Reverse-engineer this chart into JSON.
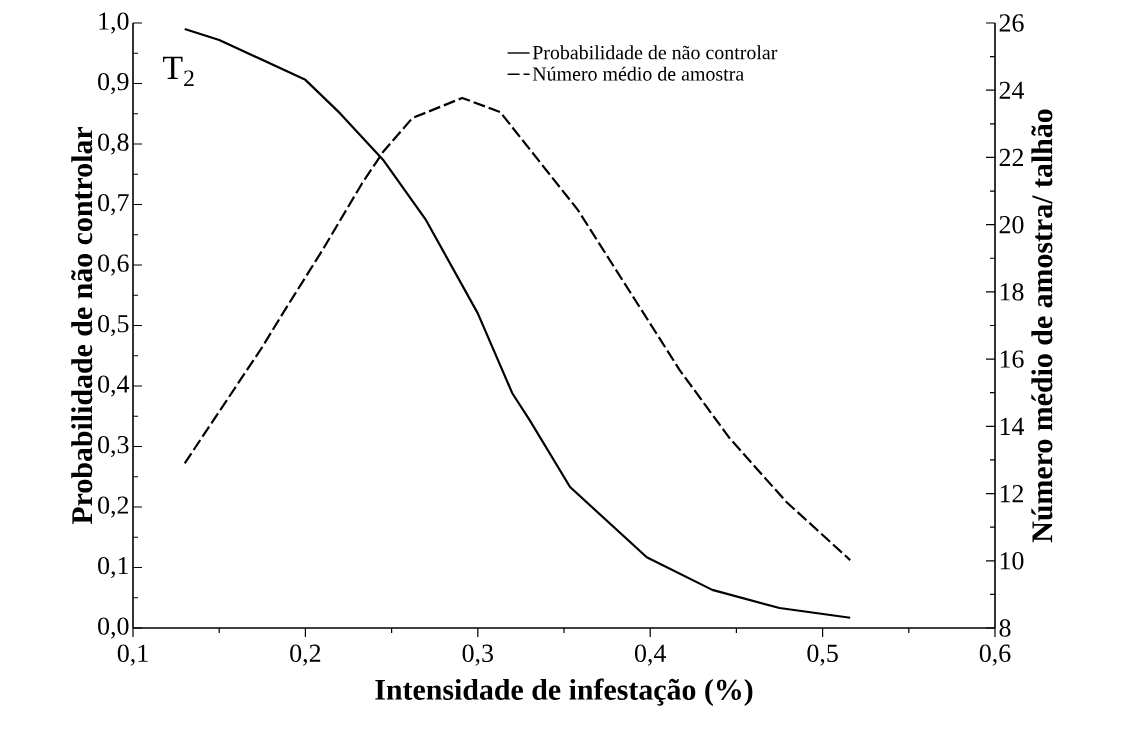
{
  "chart_data": {
    "type": "line",
    "xlabel": "Intensidade de infestação (%)",
    "ylabel": "Probabilidade de não controlar",
    "y2label": "Número médio de amostra/ talhão",
    "annotations": [
      "T$_{2}$"
    ],
    "xlim": [
      0.1,
      0.6
    ],
    "xticks": [
      {
        "value": 0.1,
        "label": "0,1"
      },
      {
        "value": 0.2,
        "label": "0,2"
      },
      {
        "value": 0.3,
        "label": "0,3"
      },
      {
        "value": 0.4,
        "label": "0,4"
      },
      {
        "value": 0.5,
        "label": "0,5"
      },
      {
        "value": 0.6,
        "label": "0,6"
      }
    ],
    "ylim": [
      0,
      1
    ],
    "yticks": [
      {
        "value": 0,
        "label": "0,0"
      },
      {
        "value": 0.1,
        "label": "0,1"
      },
      {
        "value": 0.2,
        "label": "0,2"
      },
      {
        "value": 0.3,
        "label": "0,3"
      },
      {
        "value": 0.4,
        "label": "0,4"
      },
      {
        "value": 0.5,
        "label": "0,5"
      },
      {
        "value": 0.6,
        "label": "0,6"
      },
      {
        "value": 0.7,
        "label": "0,7"
      },
      {
        "value": 0.8,
        "label": "0,8"
      },
      {
        "value": 0.9,
        "label": "0,9"
      },
      {
        "value": 1,
        "label": "1,0"
      }
    ],
    "y2lim": [
      8,
      26
    ],
    "y2ticks": [
      8,
      10,
      12,
      14,
      16,
      18,
      20,
      22,
      24,
      26
    ],
    "legend": "top right",
    "grid": false,
    "series": [
      {
        "name": "Probabilidade de não controlar",
        "color": "#000000",
        "line_style": "solid",
        "x": [
          0.13,
          0.15,
          0.2,
          0.22,
          0.245,
          0.27,
          0.3,
          0.32,
          0.33,
          0.3535,
          0.398,
          0.436,
          0.475,
          0.516
        ],
        "values": [
          0.99,
          0.972,
          0.906,
          0.851,
          0.774,
          0.674,
          0.52,
          0.388,
          0.344,
          0.233,
          0.117,
          0.063,
          0.033,
          0.017
        ]
      },
      {
        "name": "Número médio de amostra",
        "color": "#000000",
        "line_style": "dashed",
        "axis": "y2",
        "x": [
          0.13,
          0.175,
          0.187,
          0.21,
          0.233,
          0.245,
          0.262,
          0.291,
          0.313,
          0.358,
          0.406,
          0.417,
          0.446,
          0.479,
          0.516
        ],
        "values": [
          12.9,
          16.36,
          17.37,
          19.25,
          21.24,
          22.16,
          23.17,
          23.77,
          23.35,
          20.44,
          16.57,
          15.68,
          13.65,
          11.75,
          10.02
        ]
      }
    ]
  }
}
